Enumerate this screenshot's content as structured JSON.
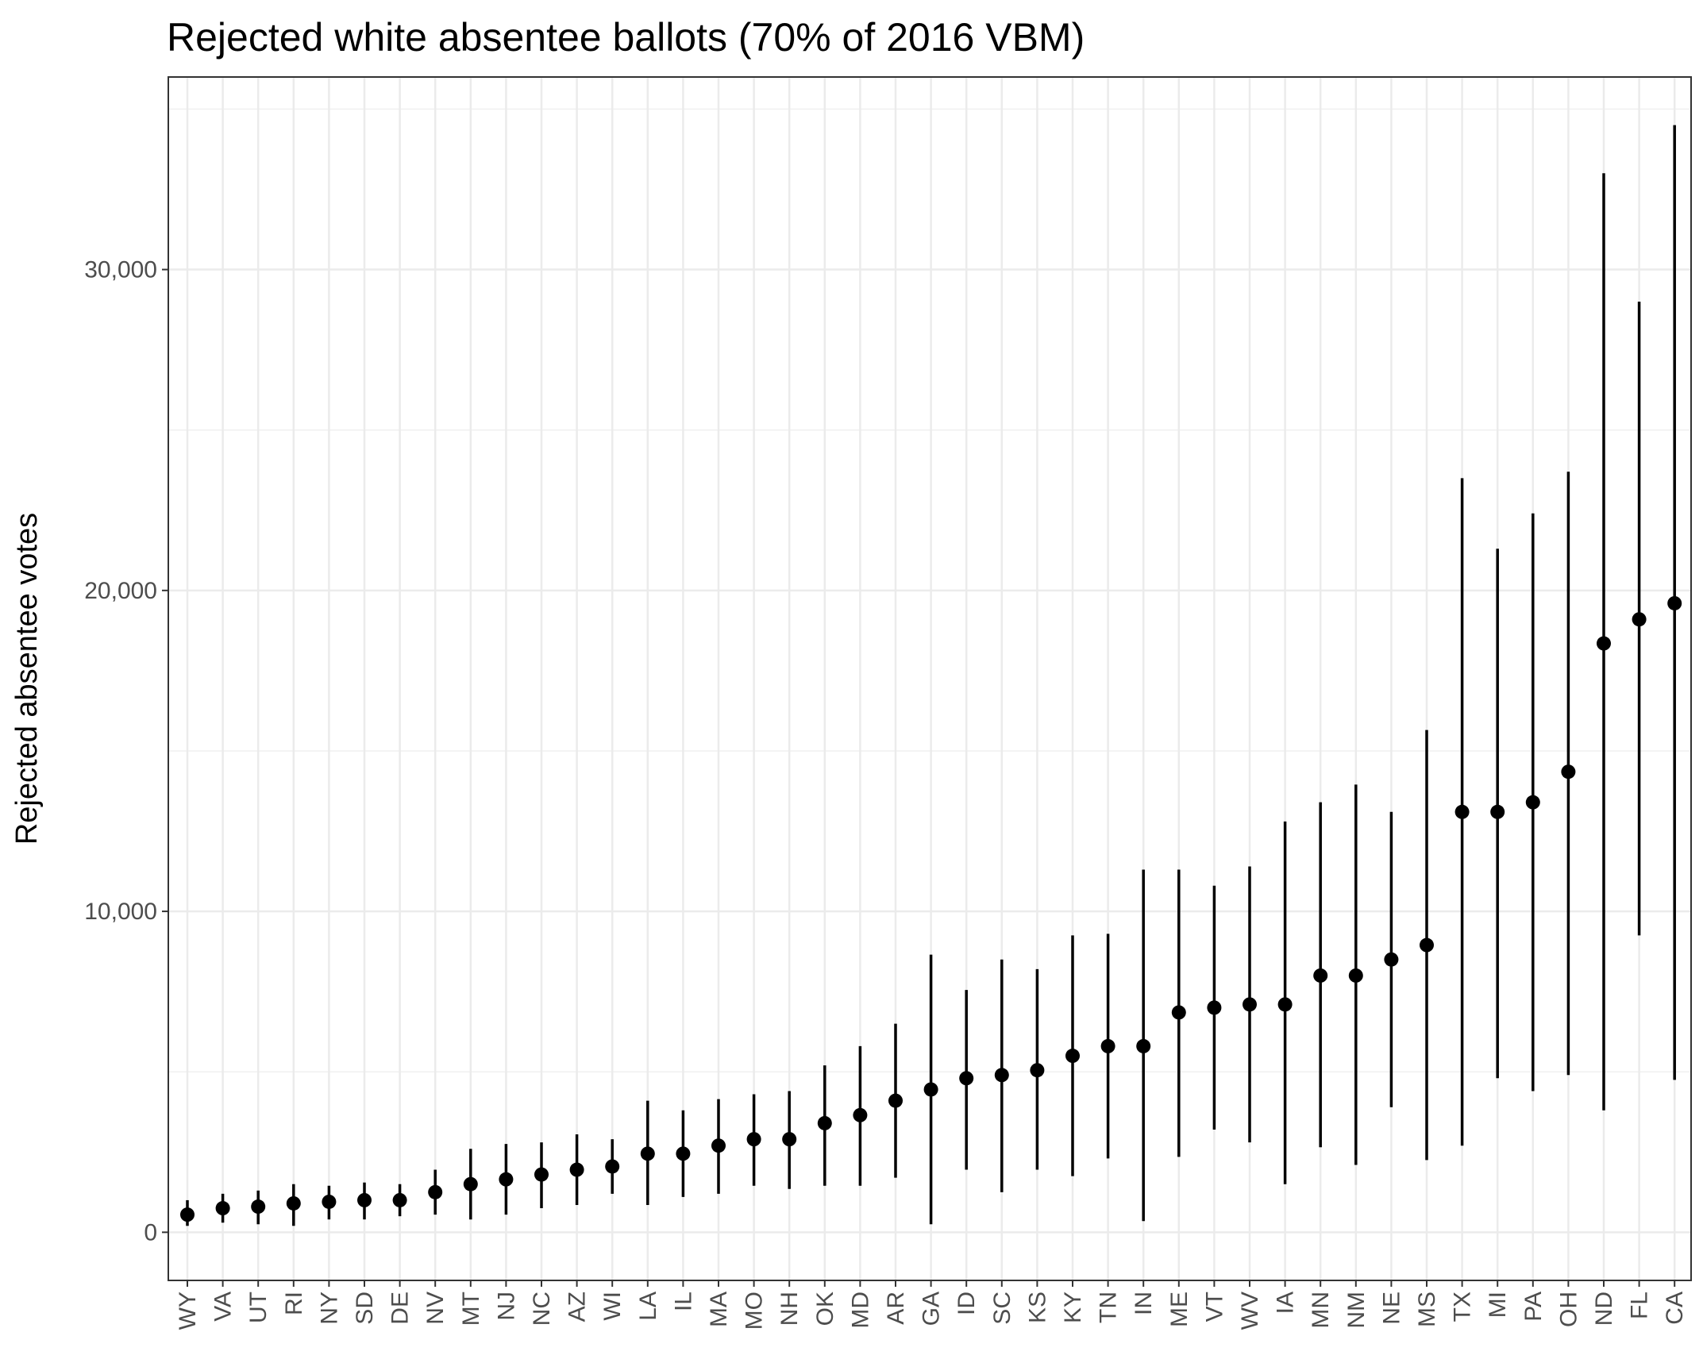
{
  "chart_data": {
    "type": "pointrange",
    "title": "Rejected white absentee ballots (70% of 2016 VBM)",
    "xlabel": "",
    "ylabel": "Rejected absentee votes",
    "ylim": [
      -1500,
      36000
    ],
    "yticks": [
      0,
      10000,
      20000,
      30000
    ],
    "ytick_labels": [
      "0",
      "10,000",
      "20,000",
      "30,000"
    ],
    "grid": true,
    "categories": [
      "WY",
      "VA",
      "UT",
      "RI",
      "NY",
      "SD",
      "DE",
      "NV",
      "MT",
      "NJ",
      "NC",
      "AZ",
      "WI",
      "LA",
      "IL",
      "MA",
      "MO",
      "NH",
      "OK",
      "MD",
      "AR",
      "GA",
      "ID",
      "SC",
      "KS",
      "KY",
      "TN",
      "IN",
      "ME",
      "VT",
      "WV",
      "IA",
      "MN",
      "NM",
      "NE",
      "MS",
      "TX",
      "MI",
      "PA",
      "OH",
      "ND",
      "FL",
      "CA"
    ],
    "values": [
      550,
      750,
      800,
      900,
      950,
      1000,
      1000,
      1250,
      1500,
      1650,
      1800,
      1950,
      2050,
      2450,
      2450,
      2700,
      2900,
      2900,
      3400,
      3650,
      4100,
      4450,
      4800,
      4900,
      5050,
      5500,
      5800,
      5800,
      6850,
      7000,
      7100,
      7100,
      8000,
      8000,
      8500,
      8950,
      13100,
      13100,
      13400,
      14350,
      18350,
      19100,
      19600
    ],
    "lower": [
      200,
      300,
      250,
      200,
      400,
      400,
      500,
      550,
      400,
      550,
      750,
      850,
      1200,
      850,
      1100,
      1200,
      1450,
      1350,
      1450,
      1450,
      1700,
      250,
      1950,
      1250,
      1950,
      1750,
      2300,
      350,
      2350,
      3200,
      2800,
      1500,
      2650,
      2100,
      3900,
      2250,
      2700,
      4800,
      4400,
      4900,
      3800,
      9250,
      4750
    ],
    "upper": [
      1000,
      1200,
      1300,
      1500,
      1450,
      1550,
      1500,
      1950,
      2600,
      2750,
      2800,
      3050,
      2900,
      4100,
      3800,
      4150,
      4300,
      4400,
      5200,
      5800,
      6500,
      8650,
      7550,
      8500,
      8200,
      9250,
      9300,
      11300,
      11300,
      10800,
      11400,
      12800,
      13400,
      13950,
      13100,
      15650,
      23500,
      21300,
      22400,
      23700,
      33000,
      29000,
      34500
    ],
    "color": "#000000"
  }
}
